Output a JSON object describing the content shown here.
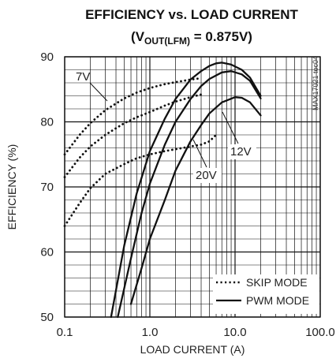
{
  "chart_data": {
    "type": "line",
    "title": "EFFICIENCY vs. LOAD CURRENT",
    "subtitle": {
      "prefix": "(V",
      "subscript": "OUT(LFM)",
      "suffix": " = 0.875V)"
    },
    "xlabel": "LOAD CURRENT (A)",
    "ylabel": "EFFICIENCY (%)",
    "x_scale": "log",
    "xlim": [
      0.1,
      100
    ],
    "ylim": [
      50,
      90
    ],
    "x_ticks": [
      0.1,
      1,
      10,
      100
    ],
    "x_tick_labels": [
      "0.1",
      "1.0",
      "10.0",
      "100.0"
    ],
    "y_ticks": [
      50,
      60,
      70,
      80,
      90
    ],
    "y_tick_labels": [
      "50",
      "60",
      "70",
      "80",
      "90"
    ],
    "grid": true,
    "legend": [
      {
        "label": "SKIP MODE",
        "style": "dotted"
      },
      {
        "label": "PWM MODE",
        "style": "solid"
      }
    ],
    "legend_position": "bottom-right",
    "annotations": [
      "7V",
      "12V",
      "20V"
    ],
    "side_code": "MAX17021 toc04",
    "series": [
      {
        "name": "7V",
        "style": "dotted",
        "x": [
          0.1,
          0.15,
          0.2,
          0.3,
          0.5,
          0.7,
          1.0,
          1.5,
          2.0,
          3.0,
          4.0
        ],
        "y": [
          75.0,
          78.0,
          79.8,
          81.8,
          83.6,
          84.5,
          85.2,
          85.8,
          86.1,
          86.5,
          86.7
        ]
      },
      {
        "name": "12V",
        "style": "dotted",
        "x": [
          0.1,
          0.15,
          0.2,
          0.3,
          0.5,
          0.7,
          1.0,
          1.5,
          2.0,
          3.0,
          4.0
        ],
        "y": [
          71.5,
          74.5,
          76.2,
          78.0,
          79.8,
          80.7,
          81.5,
          82.5,
          83.1,
          83.8,
          84.2
        ]
      },
      {
        "name": "20V",
        "style": "dotted",
        "x": [
          0.1,
          0.15,
          0.2,
          0.3,
          0.5,
          0.7,
          1.0,
          1.5,
          2.0,
          3.0,
          4.0,
          5.0,
          6.0
        ],
        "y": [
          64.0,
          67.5,
          69.8,
          72.0,
          73.5,
          74.4,
          75.0,
          75.5,
          75.8,
          76.2,
          76.5,
          77.0,
          78.0
        ]
      },
      {
        "name": "7V",
        "style": "solid",
        "x": [
          0.35,
          0.5,
          0.7,
          1.0,
          1.5,
          2.0,
          3.0,
          4.0,
          5.0,
          6.0,
          7.0,
          9.0,
          12.0,
          15.0,
          20.0
        ],
        "y": [
          50.0,
          61.0,
          69.0,
          75.5,
          80.5,
          83.5,
          86.5,
          87.8,
          88.6,
          89.0,
          89.1,
          88.8,
          88.0,
          86.8,
          84.0
        ]
      },
      {
        "name": "12V",
        "style": "solid",
        "x": [
          0.42,
          0.6,
          0.8,
          1.0,
          1.5,
          2.0,
          3.0,
          4.0,
          5.0,
          7.0,
          9.0,
          12.0,
          15.0,
          20.0
        ],
        "y": [
          50.0,
          59.0,
          66.0,
          70.5,
          76.5,
          80.0,
          83.5,
          85.5,
          86.6,
          87.6,
          87.8,
          87.3,
          86.3,
          83.6
        ]
      },
      {
        "name": "20V",
        "style": "solid",
        "x": [
          0.6,
          0.8,
          1.0,
          1.5,
          2.0,
          2.5,
          3.0,
          4.0,
          5.0,
          7.0,
          10.0,
          12.0,
          15.0,
          20.0
        ],
        "y": [
          52.0,
          57.5,
          62.0,
          68.0,
          72.5,
          75.0,
          77.0,
          79.5,
          81.3,
          83.0,
          83.8,
          83.7,
          83.0,
          81.0
        ]
      }
    ]
  }
}
